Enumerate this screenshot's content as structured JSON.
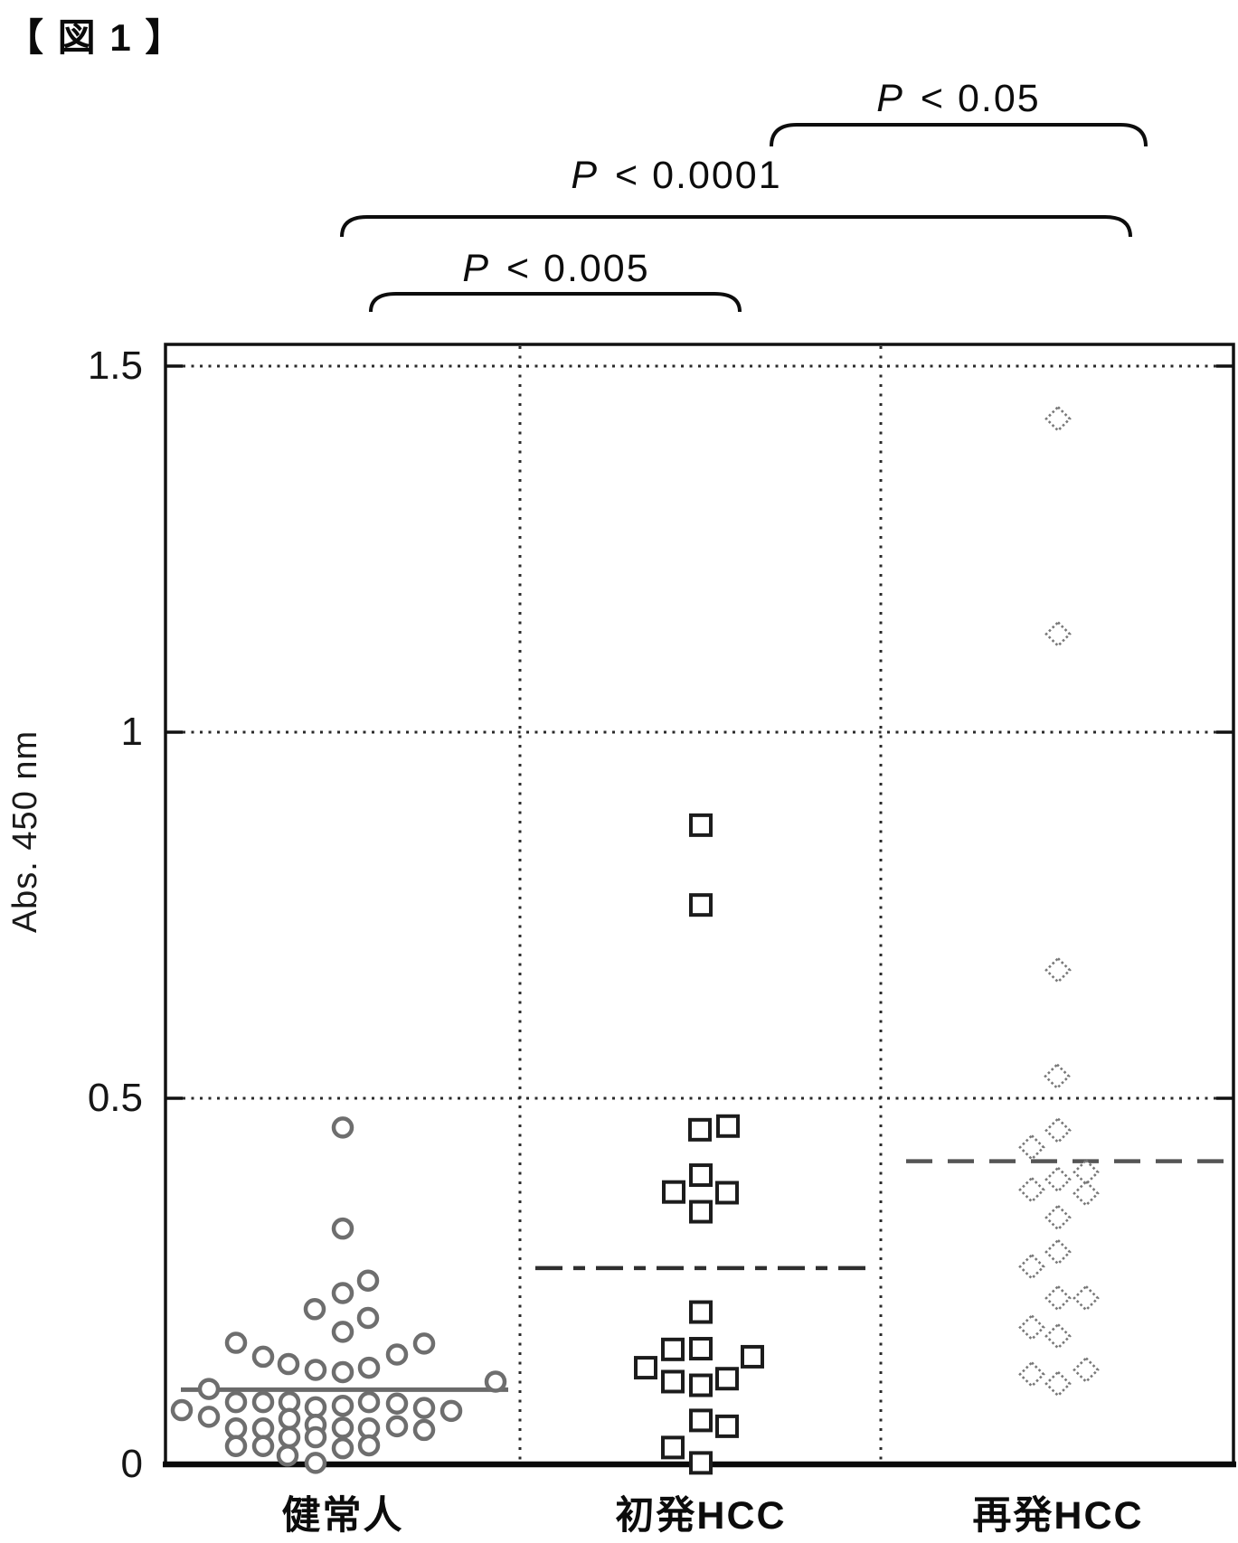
{
  "figure_label": "【 図 1 】",
  "chart_data": {
    "type": "scatter",
    "title": "",
    "xlabel": "",
    "ylabel": "Abs. 450 nm",
    "ylim": [
      0,
      1.55
    ],
    "yticks": [
      {
        "label": "0",
        "value": 0
      },
      {
        "label": "0.5",
        "value": 0.5
      },
      {
        "label": "1",
        "value": 1
      },
      {
        "label": "1.5",
        "value": 1.5
      }
    ],
    "grid": "dotted horizontal lines at 0.5/1.0/1.5 and dotted vertical column dividers",
    "legend_position": "none",
    "groups": [
      {
        "name": "健常人",
        "marker": "circle",
        "marker_color": "#6e6e6e",
        "mean": 0.102,
        "mean_style": "solid",
        "points": [
          [
            0,
            0.46
          ],
          [
            0,
            0.322
          ],
          [
            28,
            0.251
          ],
          [
            0,
            0.234
          ],
          [
            -31,
            0.212
          ],
          [
            28,
            0.2
          ],
          [
            0,
            0.181
          ],
          [
            -118,
            0.166
          ],
          [
            -88,
            0.147
          ],
          [
            -60,
            0.137
          ],
          [
            -30,
            0.129
          ],
          [
            0,
            0.126
          ],
          [
            29,
            0.132
          ],
          [
            60,
            0.15
          ],
          [
            90,
            0.165
          ],
          [
            -148,
            0.103
          ],
          [
            169,
            0.113
          ],
          [
            -118,
            0.085
          ],
          [
            -88,
            0.085
          ],
          [
            -59,
            0.085
          ],
          [
            -30,
            0.078
          ],
          [
            0,
            0.08
          ],
          [
            29,
            0.085
          ],
          [
            60,
            0.083
          ],
          [
            90,
            0.077
          ],
          [
            120,
            0.073
          ],
          [
            -178,
            0.074
          ],
          [
            -148,
            0.065
          ],
          [
            -118,
            0.049
          ],
          [
            -88,
            0.049
          ],
          [
            -59,
            0.062
          ],
          [
            -30,
            0.054
          ],
          [
            0,
            0.05
          ],
          [
            29,
            0.049
          ],
          [
            60,
            0.052
          ],
          [
            90,
            0.047
          ],
          [
            -118,
            0.025
          ],
          [
            -88,
            0.025
          ],
          [
            -59,
            0.037
          ],
          [
            -30,
            0.037
          ],
          [
            0,
            0.022
          ],
          [
            29,
            0.026
          ],
          [
            -61,
            0.012
          ],
          [
            -30,
            0.002
          ]
        ]
      },
      {
        "name": "初発HCC",
        "marker": "square",
        "marker_color": "#1c1c1c",
        "mean": 0.268,
        "mean_style": "dash-dot",
        "points": [
          [
            0,
            0.873
          ],
          [
            0,
            0.764
          ],
          [
            -1,
            0.457
          ],
          [
            30,
            0.462
          ],
          [
            0,
            0.395
          ],
          [
            -30,
            0.372
          ],
          [
            29,
            0.371
          ],
          [
            0,
            0.345
          ],
          [
            0,
            0.208
          ],
          [
            -31,
            0.157
          ],
          [
            0,
            0.158
          ],
          [
            57,
            0.147
          ],
          [
            -61,
            0.132
          ],
          [
            -31,
            0.113
          ],
          [
            0,
            0.108
          ],
          [
            29,
            0.117
          ],
          [
            0,
            0.06
          ],
          [
            29,
            0.052
          ],
          [
            -31,
            0.023
          ],
          [
            0,
            0.002
          ]
        ]
      },
      {
        "name": "再発HCC",
        "marker": "diamond",
        "marker_color": "#787878",
        "mean": 0.414,
        "mean_style": "dashed",
        "points": [
          [
            0,
            1.428
          ],
          [
            0,
            1.134
          ],
          [
            0,
            0.675
          ],
          [
            -1,
            0.53
          ],
          [
            0,
            0.456
          ],
          [
            -29,
            0.433
          ],
          [
            0,
            0.389
          ],
          [
            31,
            0.399
          ],
          [
            -29,
            0.375
          ],
          [
            31,
            0.37
          ],
          [
            0,
            0.337
          ],
          [
            0,
            0.29
          ],
          [
            -29,
            0.27
          ],
          [
            0,
            0.227
          ],
          [
            31,
            0.227
          ],
          [
            -29,
            0.187
          ],
          [
            0,
            0.175
          ],
          [
            -29,
            0.123
          ],
          [
            0,
            0.11
          ],
          [
            31,
            0.129
          ]
        ]
      }
    ],
    "comparisons": [
      {
        "label": "P < 0.005",
        "between": [
          "健常人",
          "初発HCC"
        ]
      },
      {
        "label": "P < 0.0001",
        "between": [
          "健常人",
          "再発HCC"
        ]
      },
      {
        "label": "P < 0.05",
        "between": [
          "初発HCC",
          "再発HCC"
        ]
      }
    ]
  }
}
